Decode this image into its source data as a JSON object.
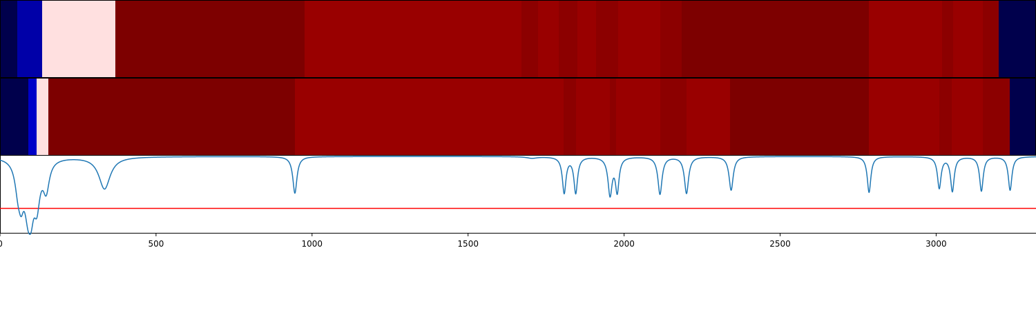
{
  "chart_data": [
    {
      "type": "heatmap",
      "title": "",
      "colormap": "seismic",
      "x_range": [
        0,
        3320
      ],
      "segments": [
        {
          "x0": 0,
          "x1": 55,
          "color": "#00004c"
        },
        {
          "x0": 55,
          "x1": 135,
          "color": "#0000a8"
        },
        {
          "x0": 135,
          "x1": 370,
          "color": "#ffe0e0"
        },
        {
          "x0": 370,
          "x1": 975,
          "color": "#7d0000"
        },
        {
          "x0": 975,
          "x1": 1670,
          "color": "#990000"
        },
        {
          "x0": 1670,
          "x1": 1725,
          "color": "#8c0000"
        },
        {
          "x0": 1725,
          "x1": 1790,
          "color": "#990000"
        },
        {
          "x0": 1790,
          "x1": 1850,
          "color": "#8c0000"
        },
        {
          "x0": 1850,
          "x1": 1910,
          "color": "#990000"
        },
        {
          "x0": 1910,
          "x1": 1980,
          "color": "#8c0000"
        },
        {
          "x0": 1980,
          "x1": 2115,
          "color": "#990000"
        },
        {
          "x0": 2115,
          "x1": 2185,
          "color": "#8c0000"
        },
        {
          "x0": 2185,
          "x1": 2785,
          "color": "#7d0000"
        },
        {
          "x0": 2785,
          "x1": 3020,
          "color": "#990000"
        },
        {
          "x0": 3020,
          "x1": 3055,
          "color": "#8c0000"
        },
        {
          "x0": 3055,
          "x1": 3150,
          "color": "#990000"
        },
        {
          "x0": 3150,
          "x1": 3200,
          "color": "#8c0000"
        },
        {
          "x0": 3200,
          "x1": 3320,
          "color": "#00004c"
        }
      ]
    },
    {
      "type": "heatmap",
      "title": "",
      "colormap": "seismic",
      "x_range": [
        0,
        3320
      ],
      "segments": [
        {
          "x0": 0,
          "x1": 90,
          "color": "#00004c"
        },
        {
          "x0": 90,
          "x1": 118,
          "color": "#0000c8"
        },
        {
          "x0": 118,
          "x1": 155,
          "color": "#ffe0e0"
        },
        {
          "x0": 155,
          "x1": 945,
          "color": "#7d0000"
        },
        {
          "x0": 945,
          "x1": 1805,
          "color": "#990000"
        },
        {
          "x0": 1805,
          "x1": 1845,
          "color": "#8c0000"
        },
        {
          "x0": 1845,
          "x1": 1955,
          "color": "#990000"
        },
        {
          "x0": 1955,
          "x1": 1975,
          "color": "#8c0000"
        },
        {
          "x0": 1975,
          "x1": 2115,
          "color": "#990000"
        },
        {
          "x0": 2115,
          "x1": 2200,
          "color": "#8c0000"
        },
        {
          "x0": 2200,
          "x1": 2340,
          "color": "#990000"
        },
        {
          "x0": 2340,
          "x1": 2785,
          "color": "#7d0000"
        },
        {
          "x0": 2785,
          "x1": 3010,
          "color": "#990000"
        },
        {
          "x0": 3010,
          "x1": 3050,
          "color": "#8c0000"
        },
        {
          "x0": 3050,
          "x1": 3150,
          "color": "#990000"
        },
        {
          "x0": 3150,
          "x1": 3235,
          "color": "#8c0000"
        },
        {
          "x0": 3235,
          "x1": 3320,
          "color": "#00004c"
        }
      ]
    },
    {
      "type": "line",
      "title": "",
      "xlabel": "",
      "ylabel": "",
      "x_range": [
        0,
        3320
      ],
      "y_range": [
        -1.0,
        0.01
      ],
      "x_ticks": [
        0,
        500,
        1000,
        1500,
        2000,
        2500,
        3000
      ],
      "x_tick_labels": [
        "0",
        "500",
        "1000",
        "1500",
        "2000",
        "2500",
        "3000"
      ],
      "baseline": 0,
      "threshold": {
        "y": -0.68,
        "color": "#ff0000"
      },
      "line_color": "#1f77b4",
      "dips": [
        {
          "x": 58,
          "depth": 0.33,
          "width": 12
        },
        {
          "x": 68,
          "depth": 0.35,
          "width": 10
        },
        {
          "x": 90,
          "depth": 0.6,
          "width": 14
        },
        {
          "x": 100,
          "depth": 0.35,
          "width": 10
        },
        {
          "x": 118,
          "depth": 0.52,
          "width": 12
        },
        {
          "x": 148,
          "depth": 0.38,
          "width": 12
        },
        {
          "x": 335,
          "depth": 0.42,
          "width": 22
        },
        {
          "x": 945,
          "depth": 0.48,
          "width": 8
        },
        {
          "x": 1705,
          "depth": 0.02,
          "width": 20
        },
        {
          "x": 1808,
          "depth": 0.47,
          "width": 7
        },
        {
          "x": 1845,
          "depth": 0.47,
          "width": 7
        },
        {
          "x": 1955,
          "depth": 0.49,
          "width": 8
        },
        {
          "x": 1978,
          "depth": 0.44,
          "width": 7
        },
        {
          "x": 2115,
          "depth": 0.49,
          "width": 8
        },
        {
          "x": 2200,
          "depth": 0.48,
          "width": 8
        },
        {
          "x": 2343,
          "depth": 0.44,
          "width": 8
        },
        {
          "x": 2785,
          "depth": 0.47,
          "width": 7
        },
        {
          "x": 3010,
          "depth": 0.41,
          "width": 7
        },
        {
          "x": 3052,
          "depth": 0.45,
          "width": 7
        },
        {
          "x": 3145,
          "depth": 0.45,
          "width": 7
        },
        {
          "x": 3237,
          "depth": 0.44,
          "width": 7
        }
      ]
    }
  ]
}
